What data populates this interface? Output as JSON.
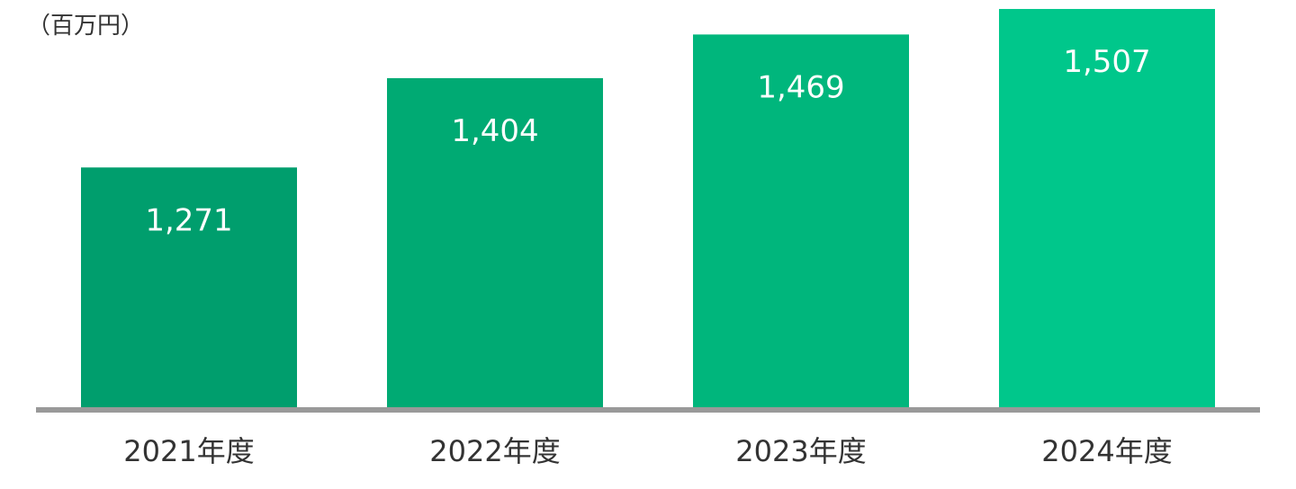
{
  "chart_data": {
    "type": "bar",
    "unit_label": "（百万円）",
    "categories": [
      "2021年度",
      "2022年度",
      "2023年度",
      "2024年度"
    ],
    "values": [
      1271,
      1404,
      1469,
      1507
    ],
    "value_labels": [
      "1,271",
      "1,404",
      "1,469",
      "1,507"
    ],
    "ylim": [
      910,
      1515
    ],
    "grid": false,
    "legend": "none",
    "colors": {
      "bars": [
        "#009e6d",
        "#00aa73",
        "#00b67c",
        "#00c78b"
      ],
      "axis": "#999999"
    }
  }
}
